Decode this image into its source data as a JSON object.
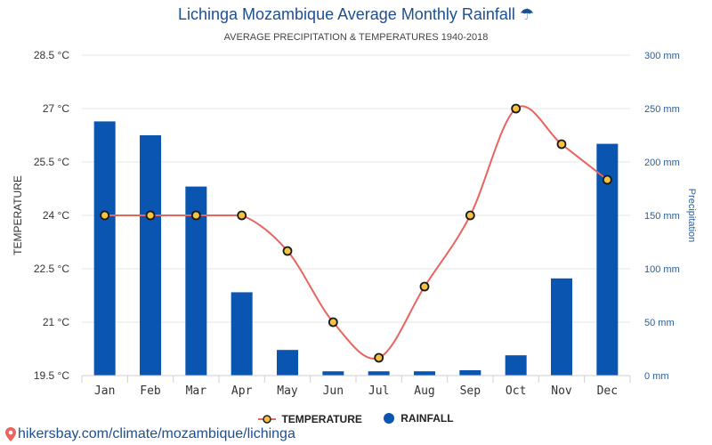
{
  "header": {
    "title": "Lichinga Mozambique Average Monthly Rainfall ☂",
    "subtitle": "AVERAGE PRECIPITATION & TEMPERATURES 1940-2018"
  },
  "chart_data": {
    "type": "bar",
    "categories": [
      "Jan",
      "Feb",
      "Mar",
      "Apr",
      "May",
      "Jun",
      "Jul",
      "Aug",
      "Sep",
      "Oct",
      "Nov",
      "Dec"
    ],
    "series": [
      {
        "name": "RAINFALL",
        "type": "bar",
        "axis": "right",
        "values": [
          238,
          225,
          177,
          78,
          24,
          4,
          4,
          4,
          5,
          19,
          91,
          217
        ]
      },
      {
        "name": "TEMPERATURE",
        "type": "line",
        "axis": "left",
        "values": [
          24,
          24,
          24,
          24,
          23,
          21,
          20,
          22,
          24,
          27,
          26,
          25
        ]
      }
    ],
    "y_left": {
      "label": "TEMPERATURE",
      "range": [
        19.5,
        28.5
      ],
      "ticks": [
        19.5,
        21,
        22.5,
        24,
        25.5,
        27,
        28.5
      ],
      "tick_labels": [
        "19.5 °C",
        "21 °C",
        "22.5 °C",
        "24 °C",
        "25.5 °C",
        "27 °C",
        "28.5 °C"
      ]
    },
    "y_right": {
      "label": "Precipitation",
      "range": [
        0,
        300
      ],
      "ticks": [
        0,
        50,
        100,
        150,
        200,
        250,
        300
      ],
      "tick_labels": [
        "0 mm",
        "50 mm",
        "100 mm",
        "150 mm",
        "200 mm",
        "250 mm",
        "300 mm"
      ]
    },
    "grid": true,
    "legend_position": "bottom-center",
    "colors": {
      "rainfall": "#0a55b0",
      "temperature_line": "#e8645f",
      "temperature_marker": "#f5c242",
      "title": "#1d4f91"
    }
  },
  "legend": {
    "temperature_label": "TEMPERATURE",
    "rainfall_label": "RAINFALL"
  },
  "footer": {
    "source": "hikersbay.com/climate/mozambique/lichinga"
  }
}
